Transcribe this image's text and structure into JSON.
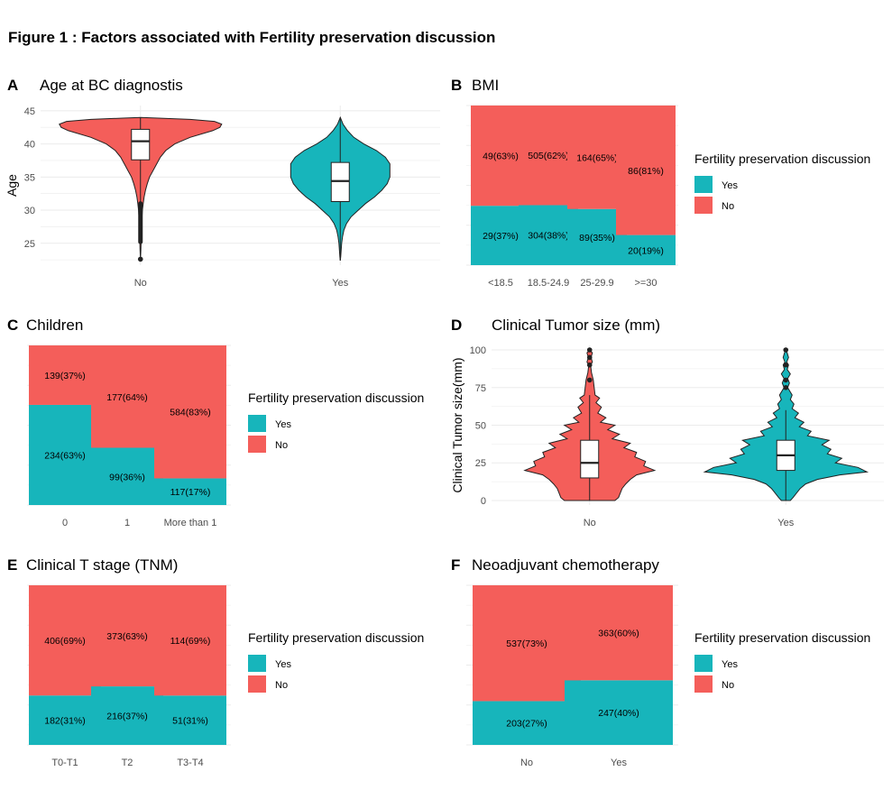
{
  "figure_title": "Figure 1 : Factors associated with Fertility preservation discussion",
  "legend": {
    "title": "Fertility preservation discussion",
    "items": [
      {
        "label": "Yes",
        "color": "#17B5BB"
      },
      {
        "label": "No",
        "color": "#F45E5A"
      }
    ]
  },
  "colors": {
    "yes": "#17B5BB",
    "no": "#F45E5A",
    "grid": "#EBEBEB",
    "outline": "#222222"
  },
  "chart_data": [
    {
      "id": "A",
      "type": "violin",
      "title": "Age at BC diagnostis",
      "xlabel": "",
      "ylabel": "Age",
      "categories": [
        "No",
        "Yes"
      ],
      "yticks": [
        25,
        30,
        35,
        40,
        45
      ],
      "ylim": [
        21.7,
        45.8
      ],
      "box": [
        {
          "category": "No",
          "q1": 37.6,
          "median": 40.4,
          "q3": 42.2,
          "whisker_low": 31,
          "whisker_high": 44,
          "outliers": [
            22.6
          ]
        },
        {
          "category": "Yes",
          "q1": 31.3,
          "median": 34.4,
          "q3": 37.2,
          "whisker_low": 22.4,
          "whisker_high": 44,
          "outliers": []
        }
      ]
    },
    {
      "id": "B",
      "type": "bar",
      "stacked": true,
      "title": "BMI",
      "categories": [
        "<18.5",
        "18.5-24.9",
        "25-29.9",
        ">=30"
      ],
      "series": [
        {
          "name": "Yes",
          "values": [
            29,
            304,
            89,
            20
          ],
          "labels": [
            "29(37%)",
            "304(38%)",
            "89(35%)",
            "20(19%)"
          ]
        },
        {
          "name": "No",
          "values": [
            49,
            505,
            164,
            86
          ],
          "labels": [
            "49(63%)",
            "505(62%)",
            "164(65%)",
            "86(81%)"
          ]
        }
      ]
    },
    {
      "id": "C",
      "type": "bar",
      "stacked": true,
      "title": "Children",
      "categories": [
        "0",
        "1",
        "More than 1"
      ],
      "series": [
        {
          "name": "Yes",
          "values": [
            234,
            99,
            117
          ],
          "labels": [
            "234(63%)",
            "99(36%)",
            "117(17%)"
          ]
        },
        {
          "name": "No",
          "values": [
            139,
            177,
            584
          ],
          "labels": [
            "139(37%)",
            "177(64%)",
            "584(83%)"
          ]
        }
      ]
    },
    {
      "id": "D",
      "type": "violin",
      "title": "Clinical Tumor size (mm)",
      "xlabel": "",
      "ylabel": "Clinical Tumor size(mm)",
      "categories": [
        "No",
        "Yes"
      ],
      "yticks": [
        0,
        25,
        50,
        75,
        100
      ],
      "ylim": [
        -3,
        103
      ],
      "box": [
        {
          "category": "No",
          "q1": 15,
          "median": 25,
          "q3": 40,
          "whisker_low": 0,
          "whisker_high": 70,
          "outliers": [
            80,
            90,
            95,
            100
          ]
        },
        {
          "category": "Yes",
          "q1": 20,
          "median": 30,
          "q3": 40,
          "whisker_low": 0,
          "whisker_high": 60,
          "outliers": [
            75,
            80,
            90,
            100
          ]
        }
      ]
    },
    {
      "id": "E",
      "type": "bar",
      "stacked": true,
      "title": "Clinical T stage (TNM)",
      "categories": [
        "T0-T1",
        "T2",
        "T3-T4"
      ],
      "series": [
        {
          "name": "Yes",
          "values": [
            182,
            216,
            51
          ],
          "labels": [
            "182(31%)",
            "216(37%)",
            "51(31%)"
          ]
        },
        {
          "name": "No",
          "values": [
            406,
            373,
            114
          ],
          "labels": [
            "406(69%)",
            "373(63%)",
            "114(69%)"
          ]
        }
      ]
    },
    {
      "id": "F",
      "type": "bar",
      "stacked": true,
      "title": "Neoadjuvant chemotherapy",
      "categories": [
        "No",
        "Yes"
      ],
      "series": [
        {
          "name": "Yes",
          "values": [
            203,
            247
          ],
          "labels": [
            "203(27%)",
            "247(40%)"
          ]
        },
        {
          "name": "No",
          "values": [
            537,
            363
          ],
          "labels": [
            "537(73%)",
            "363(60%)"
          ]
        }
      ]
    }
  ]
}
